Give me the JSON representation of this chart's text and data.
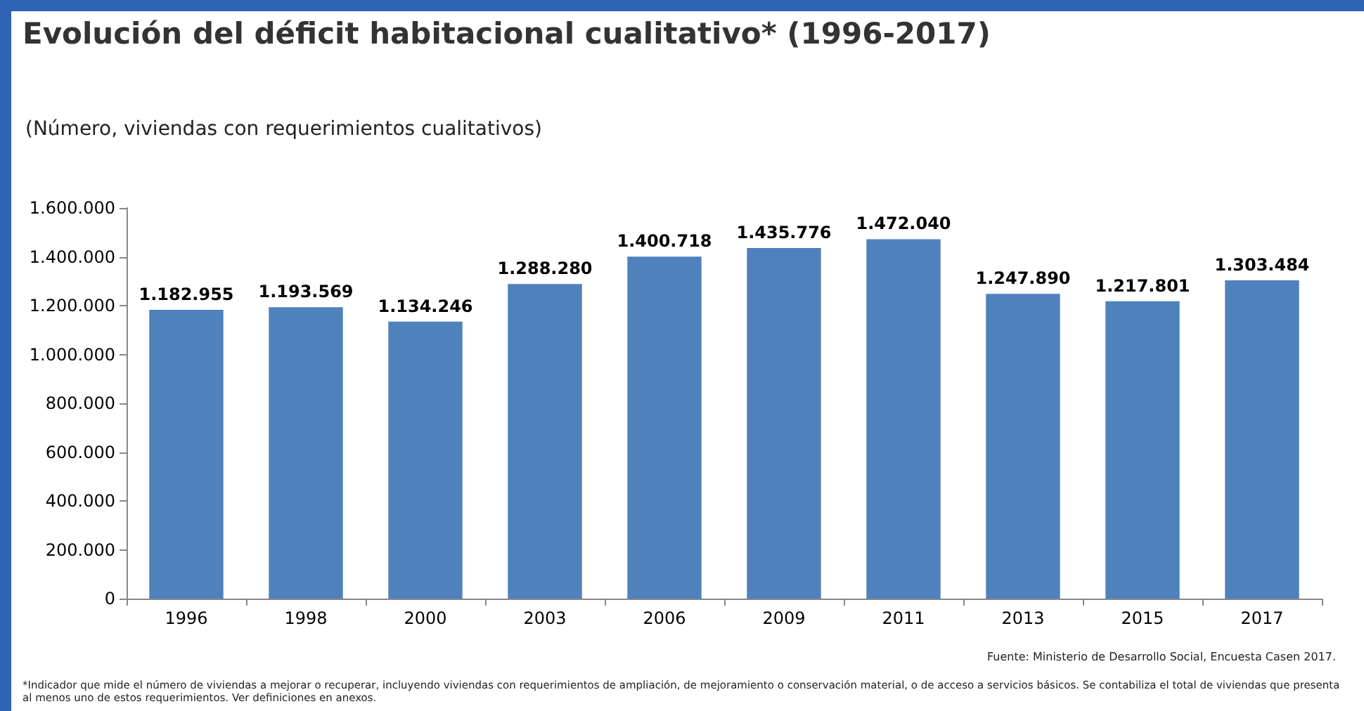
{
  "chart_data": {
    "type": "bar",
    "title": "Evolución del déficit habitacional cualitativo* (1996-2017)",
    "subtitle": "(Número, viviendas con requerimientos cualitativos)",
    "categories": [
      "1996",
      "1998",
      "2000",
      "2003",
      "2006",
      "2009",
      "2011",
      "2013",
      "2015",
      "2017"
    ],
    "values": [
      1182955,
      1193569,
      1134246,
      1288280,
      1400718,
      1435776,
      1472040,
      1247890,
      1217801,
      1303484
    ],
    "value_labels": [
      "1.182.955",
      "1.193.569",
      "1.134.246",
      "1.288.280",
      "1.400.718",
      "1.435.776",
      "1.472.040",
      "1.247.890",
      "1.217.801",
      "1.303.484"
    ],
    "color": "#4f81bd",
    "ylim": [
      0,
      1600000
    ],
    "yticks": [
      0,
      {
        "value": 200000,
        "label": "200.000"
      },
      {
        "value": 400000,
        "label": "400.000"
      },
      {
        "value": 600000,
        "label": "600.000"
      },
      {
        "value": 800000,
        "label": "800.000"
      },
      {
        "value": 1000000,
        "label": "1.000.000"
      },
      {
        "value": 1200000,
        "label": "1.200.000"
      },
      {
        "value": 1400000,
        "label": "1.400.000"
      },
      {
        "value": 1600000,
        "label": "1.600.000"
      }
    ],
    "grid": false,
    "annotations": [
      "Fuente: Ministerio de Desarrollo Social, Encuesta Casen 2017.",
      "*Indicador que mide el número de viviendas a mejorar o recuperar, incluyendo viviendas con requerimientos de ampliación, de mejoramiento o conservación material, o de acceso a servicios básicos. Se contabiliza el total de viviendas que presenta al menos uno de estos requerimientos. Ver definiciones en anexos."
    ]
  }
}
